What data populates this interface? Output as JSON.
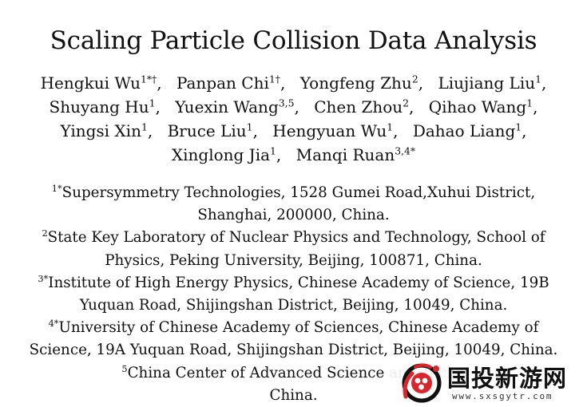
{
  "title": "Scaling Particle Collision Data Analysis",
  "authors": {
    "line1": [
      {
        "name": "Hengkui Wu",
        "sup": "1*†",
        "sep": ","
      },
      {
        "name": "Panpan Chi",
        "sup": "1†",
        "sep": ","
      },
      {
        "name": "Yongfeng Zhu",
        "sup": "2",
        "sep": ","
      },
      {
        "name": "Liujiang Liu",
        "sup": "1",
        "sep": ","
      }
    ],
    "line2": [
      {
        "name": "Shuyang Hu",
        "sup": "1",
        "sep": ","
      },
      {
        "name": "Yuexin Wang",
        "sup": "3,5",
        "sep": ","
      },
      {
        "name": "Chen Zhou",
        "sup": "2",
        "sep": ","
      },
      {
        "name": "Qihao Wang",
        "sup": "1",
        "sep": ","
      }
    ],
    "line3": [
      {
        "name": "Yingsi Xin",
        "sup": "1",
        "sep": ","
      },
      {
        "name": "Bruce Liu",
        "sup": "1",
        "sep": ","
      },
      {
        "name": "Hengyuan Wu",
        "sup": "1",
        "sep": ","
      },
      {
        "name": "Dahao Liang",
        "sup": "1",
        "sep": ","
      }
    ],
    "line4": [
      {
        "name": "Xinglong Jia",
        "sup": "1",
        "sep": ","
      },
      {
        "name": "Manqi Ruan",
        "sup": "3,4*",
        "sep": ""
      }
    ]
  },
  "affiliations": [
    {
      "mark": "1*",
      "line1": "Supersymmetry Technologies, 1528 Gumei Road,Xuhui District,",
      "line2": "Shanghai, 200000, China."
    },
    {
      "mark": "2",
      "line1": "State Key Laboratory of Nuclear Physics and Technology,  School of",
      "line2": "Physics, Peking University,  Beijing, 100871, China."
    },
    {
      "mark": "3*",
      "line1": "Institute of High Energy Physics, Chinese Academy of Science,  19B",
      "line2": "Yuquan Road, Shijingshan District, Beijing, 10049, China."
    },
    {
      "mark": "4*",
      "line1": "University of Chinese Academy of Sciences, Chinese Academy of",
      "line2": "Science,  19A Yuquan Road, Shijingshan District, Beijing, 10049, China."
    },
    {
      "mark": "5",
      "line1": "China Center of Advanced Science and Techn",
      "line2": "China."
    }
  ],
  "watermark": {
    "name": "国投新游网",
    "url": "www.sxsgytr.com"
  },
  "colors": {
    "text": "#111111",
    "watermark_red": "#d8262b",
    "watermark_black": "#111111"
  }
}
